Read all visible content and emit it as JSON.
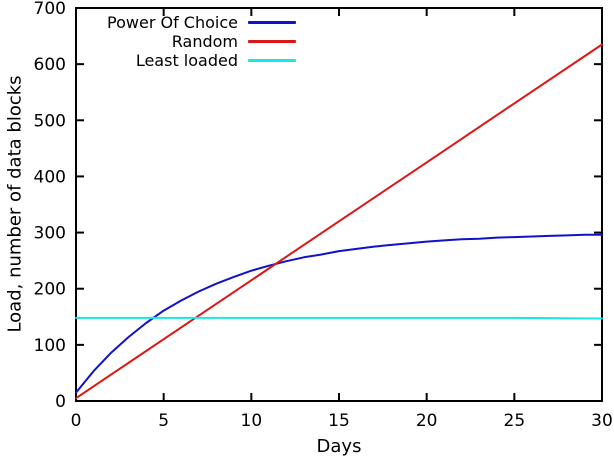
{
  "figure": {
    "background": "#ffffff",
    "axis_color": "#000000"
  },
  "chart_data": {
    "type": "line",
    "title": "",
    "xlabel": "Days",
    "ylabel": "Load, number of data blocks",
    "xlim": [
      0,
      30
    ],
    "ylim": [
      0,
      700
    ],
    "xticks": [
      0,
      5,
      10,
      15,
      20,
      25,
      30
    ],
    "yticks": [
      0,
      100,
      200,
      300,
      400,
      500,
      600,
      700
    ],
    "grid": false,
    "legend_position": "top-left-inside",
    "series": [
      {
        "name": "Power Of Choice",
        "color": "#1111cc",
        "x": [
          0,
          1,
          2,
          3,
          4,
          5,
          6,
          7,
          8,
          9,
          10,
          11,
          12,
          13,
          14,
          15,
          16,
          17,
          18,
          19,
          20,
          21,
          22,
          23,
          24,
          25,
          26,
          27,
          28,
          29,
          30
        ],
        "y": [
          15,
          53,
          86,
          114,
          139,
          161,
          179,
          195,
          209,
          221,
          232,
          241,
          249,
          256,
          261,
          267,
          271,
          275,
          278,
          281,
          284,
          286,
          288,
          289,
          291,
          292,
          293,
          294,
          295,
          296,
          296
        ]
      },
      {
        "name": "Random",
        "color": "#dd1515",
        "x": [
          0,
          5,
          10,
          15,
          20,
          25,
          30
        ],
        "y": [
          5,
          110,
          215,
          320,
          425,
          530,
          635
        ]
      },
      {
        "name": "Least loaded",
        "color": "#17e7e7",
        "x": [
          0,
          5,
          10,
          15,
          20,
          25,
          30
        ],
        "y": [
          148,
          148,
          148,
          148,
          148,
          148,
          147
        ]
      }
    ]
  }
}
